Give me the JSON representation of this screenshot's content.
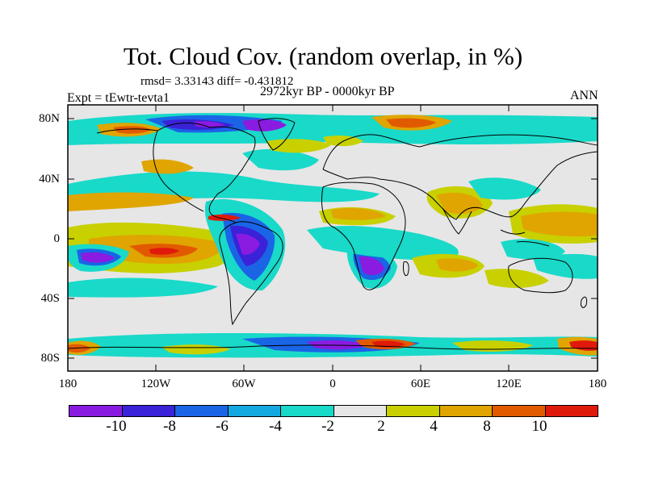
{
  "title": "Tot. Cloud Cov. (random overlap, in %)",
  "stats": "rmsd= 3.33143 diff= -0.431812",
  "period": "2972kyr BP - 0000kyr BP",
  "experiment": "Expt = tEwtr-tevta1",
  "season": "ANN",
  "lat_labels": [
    "80N",
    "40N",
    "0",
    "40S",
    "80S"
  ],
  "lon_labels": [
    "180",
    "120W",
    "60W",
    "0",
    "60E",
    "120E",
    "180"
  ],
  "colorbar": {
    "labels": [
      "-10",
      "-8",
      "-6",
      "-4",
      "-2",
      "2",
      "4",
      "8",
      "10"
    ],
    "colors": [
      "#8a1be0",
      "#3a22d8",
      "#1a64e6",
      "#14a8e0",
      "#19d9c9",
      "#e6e6e6",
      "#c8d000",
      "#e0a500",
      "#e25a00",
      "#e01a0a"
    ]
  },
  "palette": {
    "ocean_neutral": "#e6e6e6",
    "coast": "#000000"
  }
}
